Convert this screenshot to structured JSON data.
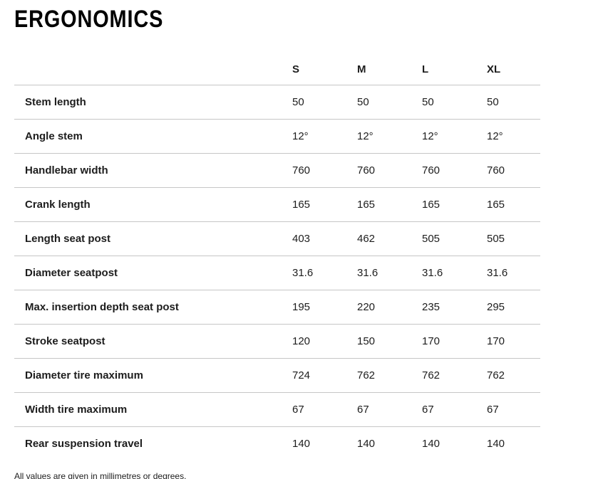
{
  "page": {
    "title": "ERGONOMICS",
    "footnote": "All values are given in millimetres or degrees."
  },
  "table": {
    "column_headers": [
      "S",
      "M",
      "L",
      "XL"
    ],
    "rows": [
      {
        "label": "Stem length",
        "values": [
          "50",
          "50",
          "50",
          "50"
        ]
      },
      {
        "label": "Angle stem",
        "values": [
          "12°",
          "12°",
          "12°",
          "12°"
        ]
      },
      {
        "label": "Handlebar width",
        "values": [
          "760",
          "760",
          "760",
          "760"
        ]
      },
      {
        "label": "Crank length",
        "values": [
          "165",
          "165",
          "165",
          "165"
        ]
      },
      {
        "label": "Length seat post",
        "values": [
          "403",
          "462",
          "505",
          "505"
        ]
      },
      {
        "label": "Diameter seatpost",
        "values": [
          "31.6",
          "31.6",
          "31.6",
          "31.6"
        ]
      },
      {
        "label": "Max. insertion depth seat post",
        "values": [
          "195",
          "220",
          "235",
          "295"
        ]
      },
      {
        "label": "Stroke seatpost",
        "values": [
          "120",
          "150",
          "170",
          "170"
        ]
      },
      {
        "label": "Diameter tire maximum",
        "values": [
          "724",
          "762",
          "762",
          "762"
        ]
      },
      {
        "label": "Width tire maximum",
        "values": [
          "67",
          "67",
          "67",
          "67"
        ]
      },
      {
        "label": "Rear suspension travel",
        "values": [
          "140",
          "140",
          "140",
          "140"
        ]
      }
    ]
  },
  "colors": {
    "text": "#1d1d1d",
    "title": "#000000",
    "divider": "#c6c6c6",
    "background": "#ffffff"
  }
}
